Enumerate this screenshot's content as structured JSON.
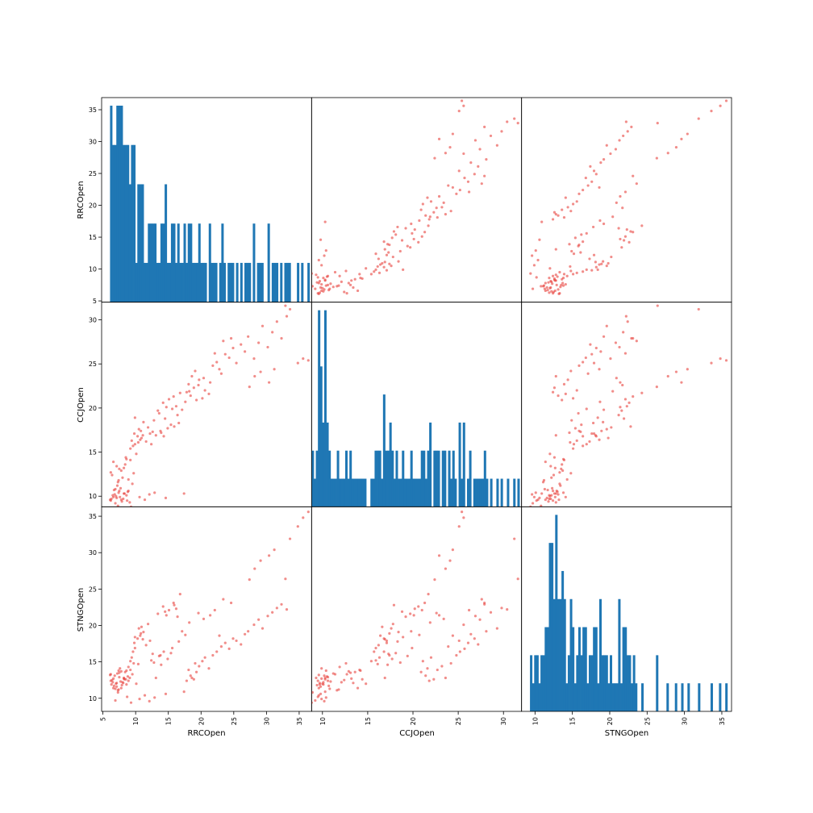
{
  "chart_data": {
    "type": "scatter_matrix",
    "variables": [
      "RRCOpen",
      "CCJOpen",
      "STNGOpen"
    ],
    "colors": {
      "hist": "#1f77b4",
      "scatter": "#e8413c"
    },
    "ranges": {
      "RRCOpen": [
        4.8,
        36.9
      ],
      "CCJOpen": [
        8.8,
        32.0
      ],
      "STNGOpen": [
        8.2,
        36.3
      ]
    },
    "ticks": {
      "RRCOpen": [
        5,
        10,
        15,
        20,
        25,
        30,
        35
      ],
      "CCJOpen": [
        10,
        15,
        20,
        25,
        30
      ],
      "STNGOpen": [
        10,
        15,
        20,
        25,
        30,
        35
      ]
    },
    "panels": [
      {
        "row": "RRCOpen",
        "col": "RRCOpen",
        "type": "hist",
        "bins": 100
      },
      {
        "row": "RRCOpen",
        "col": "CCJOpen",
        "type": "scatter"
      },
      {
        "row": "RRCOpen",
        "col": "STNGOpen",
        "type": "scatter"
      },
      {
        "row": "CCJOpen",
        "col": "RRCOpen",
        "type": "scatter"
      },
      {
        "row": "CCJOpen",
        "col": "CCJOpen",
        "type": "hist",
        "bins": 100
      },
      {
        "row": "CCJOpen",
        "col": "STNGOpen",
        "type": "scatter"
      },
      {
        "row": "STNGOpen",
        "col": "RRCOpen",
        "type": "scatter"
      },
      {
        "row": "STNGOpen",
        "col": "CCJOpen",
        "type": "scatter"
      },
      {
        "row": "STNGOpen",
        "col": "STNGOpen",
        "type": "hist",
        "bins": 100
      }
    ],
    "points": [
      [
        6.2,
        9.5,
        12.4
      ],
      [
        6.8,
        10.2,
        13.1
      ],
      [
        7.1,
        9.8,
        11.6
      ],
      [
        7.5,
        10.6,
        12.9
      ],
      [
        6.5,
        10.1,
        12.2
      ],
      [
        7.9,
        9.4,
        11.8
      ],
      [
        8.3,
        10.3,
        12.6
      ],
      [
        7.2,
        11.2,
        13.4
      ],
      [
        6.9,
        10.8,
        11.3
      ],
      [
        8.1,
        9.7,
        12.1
      ],
      [
        7.4,
        10.4,
        13.8
      ],
      [
        6.6,
        9.9,
        12.7
      ],
      [
        8.6,
        10.1,
        11.9
      ],
      [
        7.7,
        10.9,
        12.3
      ],
      [
        6.1,
        9.6,
        13.2
      ],
      [
        9.1,
        9.3,
        12.8
      ],
      [
        7.3,
        11.6,
        11.1
      ],
      [
        8.8,
        10.5,
        13.0
      ],
      [
        6.4,
        12.4,
        12.5
      ],
      [
        7.8,
        9.6,
        11.4
      ],
      [
        8.4,
        13.6,
        13.6
      ],
      [
        7.0,
        10.0,
        12.0
      ],
      [
        9.5,
        11.4,
        13.3
      ],
      [
        6.7,
        10.7,
        11.7
      ],
      [
        8.0,
        12.1,
        12.2
      ],
      [
        7.6,
        9.9,
        14.1
      ],
      [
        8.9,
        10.6,
        12.4
      ],
      [
        6.3,
        9.7,
        11.9
      ],
      [
        7.5,
        13.1,
        13.5
      ],
      [
        8.2,
        10.3,
        12.8
      ],
      [
        10.1,
        14.8,
        12.0
      ],
      [
        9.4,
        16.3,
        15.6
      ],
      [
        10.3,
        16.8,
        18.2
      ],
      [
        9.8,
        17.1,
        17.6
      ],
      [
        10.7,
        16.4,
        18.6
      ],
      [
        11.2,
        18.4,
        19.1
      ],
      [
        9.6,
        15.7,
        16.4
      ],
      [
        10.5,
        17.6,
        19.6
      ],
      [
        11.6,
        16.2,
        17.3
      ],
      [
        9.9,
        18.9,
        18.4
      ],
      [
        13.1,
        16.9,
        12.8
      ],
      [
        13.8,
        17.4,
        15.9
      ],
      [
        14.3,
        16.8,
        16.4
      ],
      [
        14.9,
        17.7,
        15.4
      ],
      [
        15.4,
        18.1,
        16.2
      ],
      [
        13.6,
        19.4,
        15.8
      ],
      [
        14.7,
        20.1,
        21.4
      ],
      [
        15.1,
        21.0,
        22.1
      ],
      [
        13.4,
        19.7,
        21.6
      ],
      [
        14.2,
        20.6,
        22.6
      ],
      [
        15.8,
        21.3,
        23.1
      ],
      [
        12.8,
        18.6,
        14.9
      ],
      [
        16.4,
        19.2,
        21.2
      ],
      [
        15.9,
        17.9,
        22.8
      ],
      [
        14.5,
        18.8,
        21.9
      ],
      [
        16.2,
        20.2,
        22.3
      ],
      [
        12.4,
        15.9,
        15.2
      ],
      [
        13.9,
        17.2,
        14.6
      ],
      [
        15.6,
        19.9,
        16.9
      ],
      [
        16.8,
        21.7,
        24.3
      ],
      [
        18.4,
        21.4,
        13.1
      ],
      [
        18.9,
        22.3,
        12.6
      ],
      [
        19.3,
        20.9,
        13.6
      ],
      [
        17.8,
        21.8,
        12.4
      ],
      [
        18.1,
        22.7,
        13.9
      ],
      [
        19.7,
        23.2,
        14.4
      ],
      [
        20.2,
        21.1,
        15.1
      ],
      [
        18.6,
        23.6,
        12.8
      ],
      [
        19.1,
        24.2,
        14.8
      ],
      [
        20.6,
        22.0,
        15.6
      ],
      [
        21.2,
        21.6,
        14.1
      ],
      [
        21.8,
        24.8,
        15.9
      ],
      [
        22.4,
        25.2,
        16.4
      ],
      [
        23.1,
        23.9,
        17.1
      ],
      [
        23.7,
        26.1,
        17.6
      ],
      [
        24.3,
        25.7,
        16.8
      ],
      [
        24.9,
        26.8,
        18.2
      ],
      [
        25.4,
        25.1,
        17.9
      ],
      [
        22.8,
        24.4,
        18.6
      ],
      [
        26.1,
        27.2,
        17.4
      ],
      [
        26.7,
        26.4,
        18.8
      ],
      [
        27.2,
        28.1,
        19.2
      ],
      [
        28.1,
        25.6,
        20.1
      ],
      [
        28.8,
        27.4,
        20.8
      ],
      [
        29.4,
        29.3,
        19.6
      ],
      [
        30.2,
        26.9,
        21.3
      ],
      [
        30.9,
        28.6,
        21.8
      ],
      [
        31.6,
        29.8,
        22.4
      ],
      [
        32.3,
        27.9,
        22.9
      ],
      [
        33.1,
        30.4,
        22.2
      ],
      [
        27.4,
        22.4,
        26.3
      ],
      [
        28.2,
        23.6,
        27.8
      ],
      [
        29.1,
        24.1,
        28.9
      ],
      [
        30.4,
        22.9,
        29.6
      ],
      [
        31.2,
        24.4,
        30.4
      ],
      [
        33.6,
        31.2,
        31.9
      ],
      [
        34.8,
        25.1,
        33.6
      ],
      [
        35.6,
        25.6,
        34.8
      ],
      [
        36.4,
        25.4,
        35.6
      ],
      [
        32.9,
        31.6,
        26.4
      ],
      [
        7.3,
        8.9,
        10.8
      ],
      [
        6.9,
        9.2,
        9.7
      ],
      [
        8.7,
        9.5,
        10.2
      ],
      [
        9.3,
        8.8,
        9.4
      ],
      [
        10.6,
        9.9,
        9.9
      ],
      [
        11.4,
        9.6,
        10.4
      ],
      [
        12.1,
        10.2,
        9.6
      ],
      [
        12.9,
        10.4,
        10.1
      ],
      [
        14.6,
        9.8,
        10.6
      ],
      [
        17.4,
        10.3,
        10.9
      ],
      [
        7.1,
        13.4,
        12.1
      ],
      [
        6.6,
        13.9,
        11.4
      ],
      [
        7.8,
        12.9,
        13.7
      ],
      [
        8.5,
        14.4,
        12.6
      ],
      [
        8.9,
        11.9,
        14.3
      ],
      [
        9.7,
        12.6,
        14.8
      ],
      [
        6.2,
        12.7,
        13.3
      ],
      [
        7.4,
        11.8,
        11.2
      ],
      [
        8.2,
        13.2,
        12.7
      ],
      [
        9.2,
        14.1,
        13.9
      ],
      [
        17.1,
        19.8,
        19.2
      ],
      [
        17.6,
        20.7,
        18.7
      ],
      [
        18.2,
        21.9,
        20.4
      ],
      [
        19.6,
        22.6,
        21.7
      ],
      [
        20.4,
        23.4,
        20.9
      ],
      [
        21.4,
        22.9,
        21.4
      ],
      [
        22.1,
        26.2,
        22.1
      ],
      [
        16.6,
        18.3,
        17.8
      ],
      [
        23.4,
        27.6,
        23.6
      ],
      [
        24.6,
        27.9,
        23.1
      ],
      [
        10.9,
        16.6,
        19.8
      ],
      [
        11.9,
        17.8,
        20.2
      ],
      [
        9.2,
        15.4,
        15.1
      ],
      [
        10.4,
        16.1,
        14.7
      ],
      [
        12.6,
        17.3,
        16.1
      ],
      [
        8.6,
        14.2,
        13.8
      ],
      [
        11.1,
        16.9,
        18.1
      ],
      [
        9.9,
        15.9,
        16.9
      ],
      [
        12.2,
        17.1,
        17.9
      ],
      [
        10.8,
        17.4,
        18.9
      ]
    ]
  },
  "labels": {
    "x": [
      "RRCOpen",
      "CCJOpen",
      "STNGOpen"
    ],
    "y": [
      "RRCOpen",
      "CCJOpen",
      "STNGOpen"
    ]
  }
}
